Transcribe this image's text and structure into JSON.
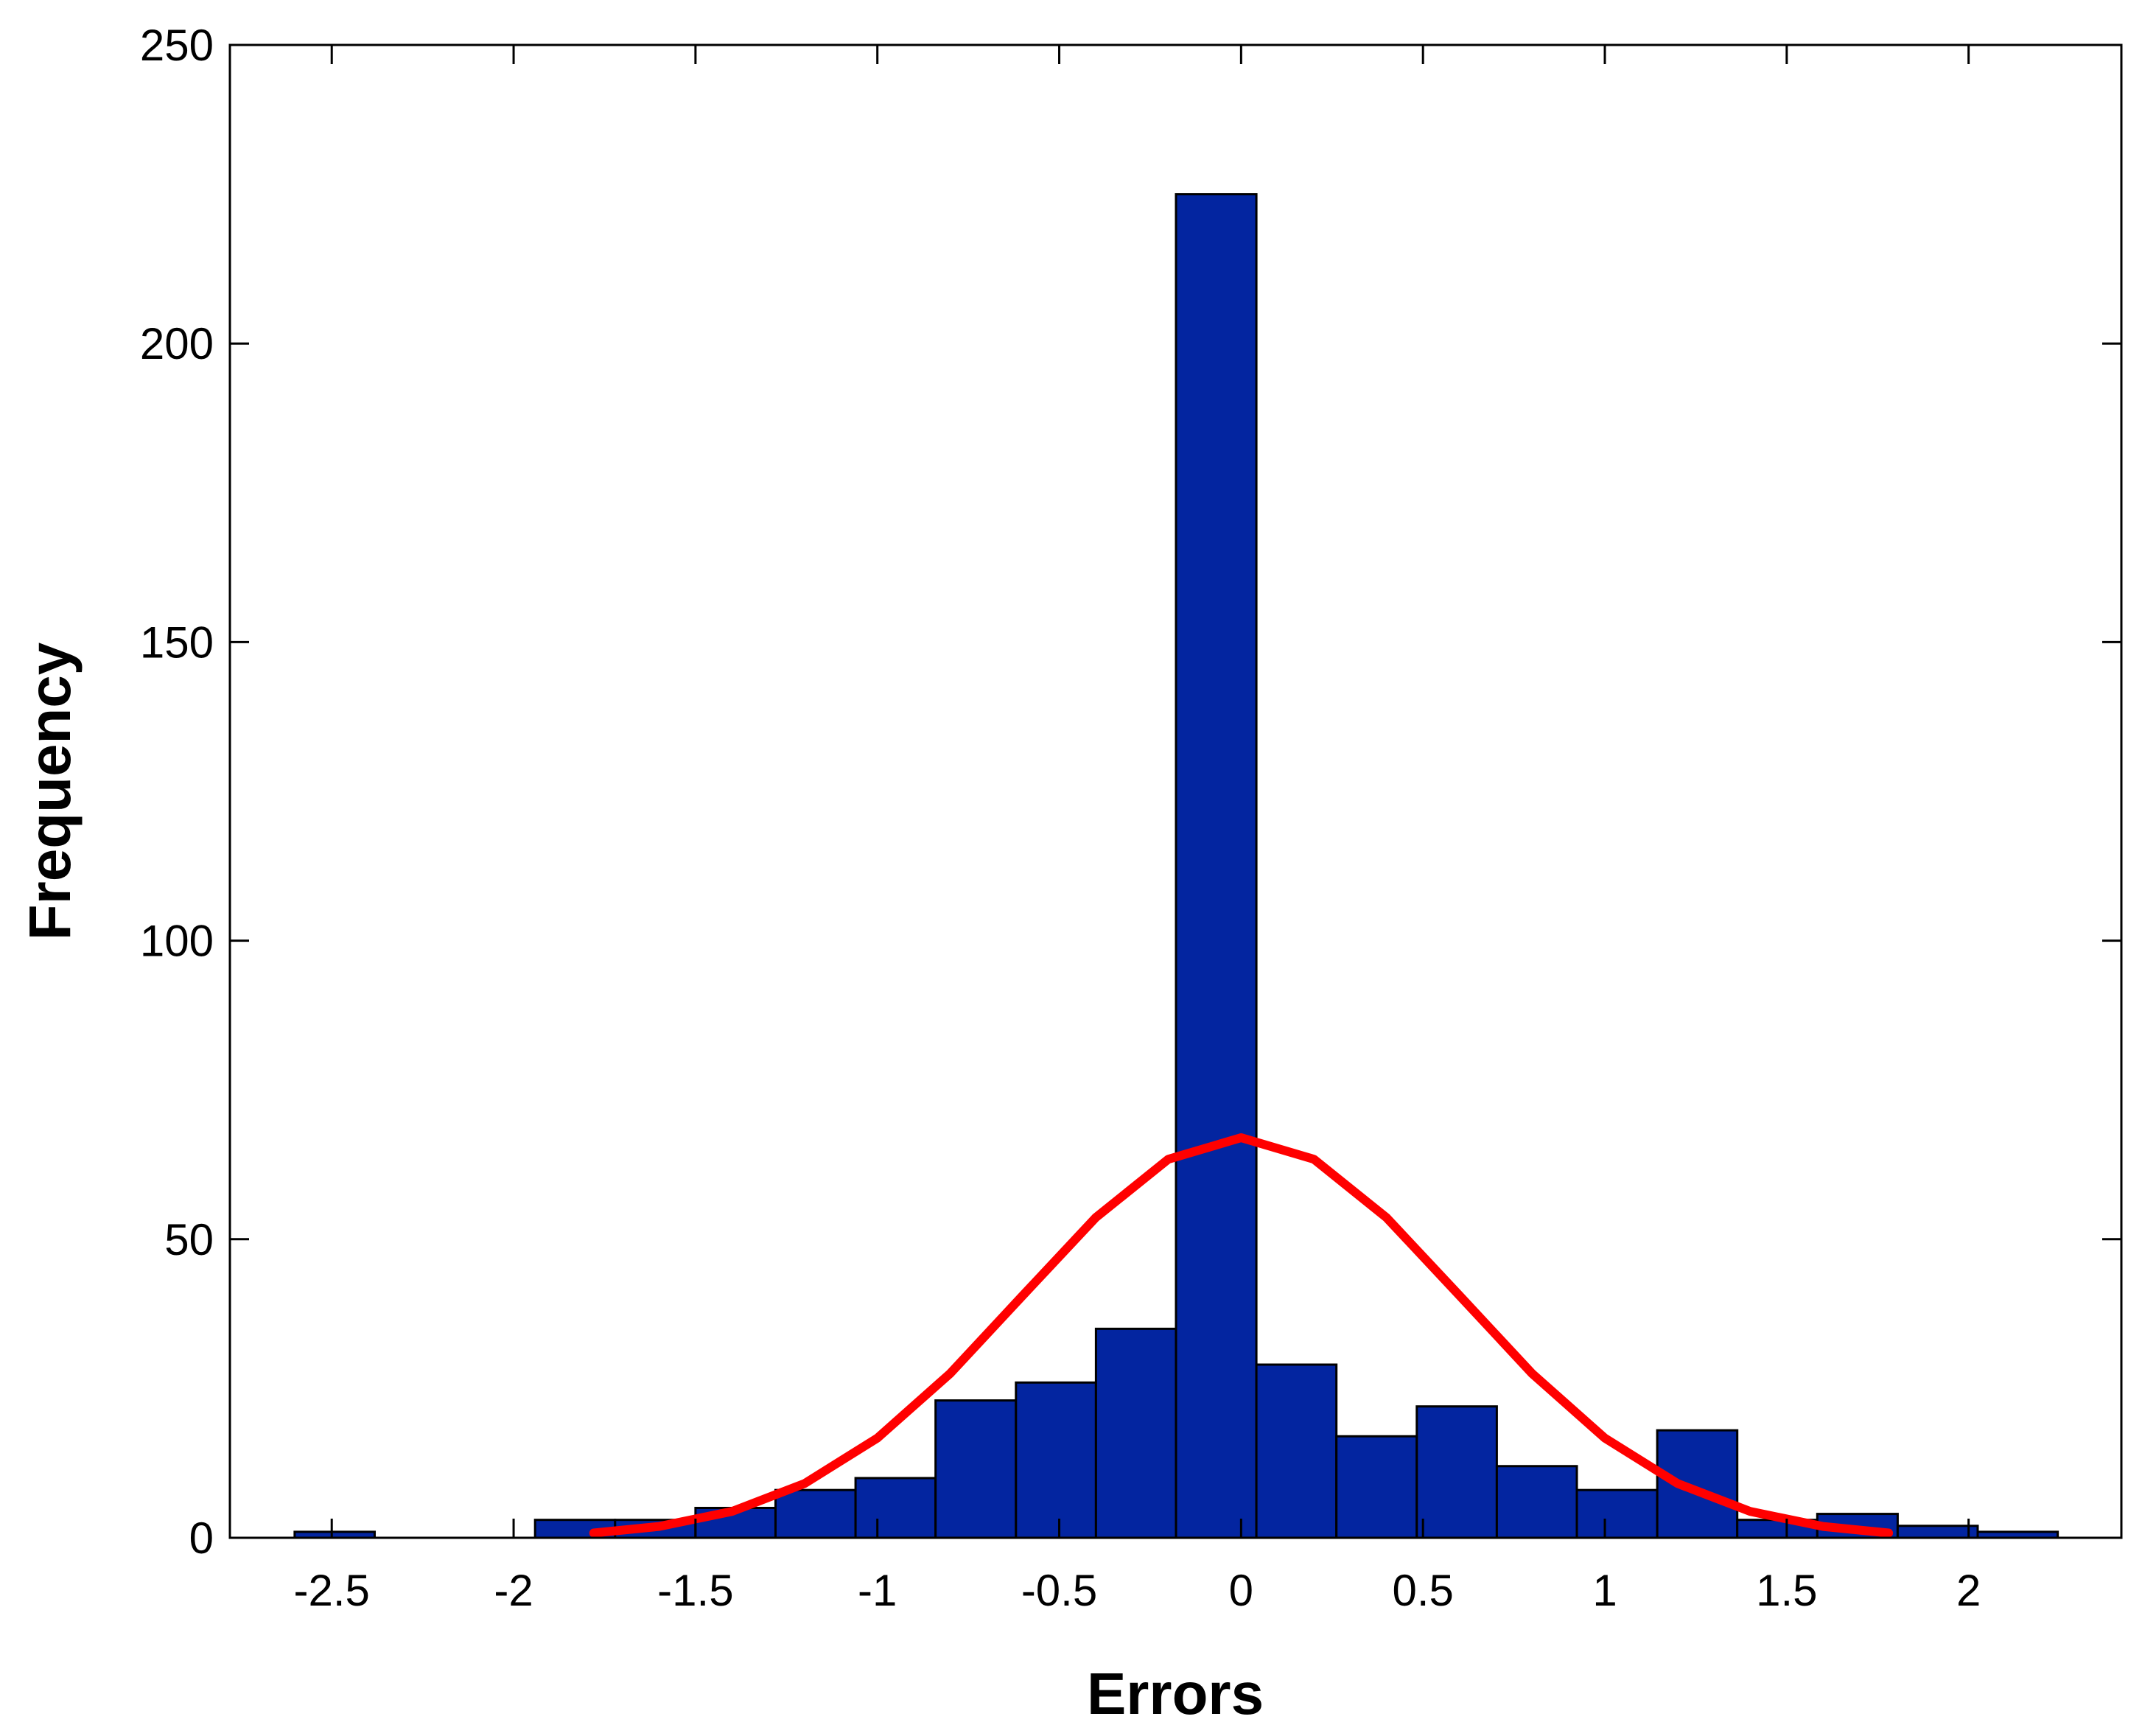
{
  "chart_data": {
    "type": "histogram",
    "xlabel": "Errors",
    "ylabel": "Frequency",
    "bins": [
      -2.602,
      -2.382,
      -2.161,
      -1.941,
      -1.721,
      -1.5,
      -1.28,
      -1.06,
      -0.84,
      -0.619,
      -0.399,
      -0.179,
      0.042,
      0.262,
      0.483,
      0.703,
      0.923,
      1.144,
      1.364,
      1.584,
      1.805,
      2.025,
      2.245
    ],
    "values": [
      1,
      0,
      0,
      3,
      3,
      5,
      8,
      10,
      23,
      26,
      35,
      225,
      29,
      17,
      22,
      12,
      8,
      18,
      3,
      4,
      2,
      1
    ],
    "color": "#0325a0",
    "edgecolor": "#000000",
    "curve": {
      "x": [
        -1.78,
        -1.6,
        -1.4,
        -1.2,
        -1.0,
        -0.8,
        -0.6,
        -0.4,
        -0.2,
        0,
        0.2,
        0.4,
        0.6,
        0.8,
        1.0,
        1.2,
        1.4,
        1.6,
        1.78
      ],
      "values": [
        0.8,
        1.9,
        4.4,
        9.1,
        16.7,
        27.5,
        40.6,
        53.6,
        63.4,
        67,
        63.4,
        53.6,
        40.6,
        27.5,
        16.7,
        9.1,
        4.4,
        1.9,
        0.8
      ],
      "color": "#ff0000"
    },
    "xlim": [
      -2.78,
      2.42
    ],
    "ylim": [
      0,
      250
    ],
    "xticks": [
      -2.5,
      -2,
      -1.5,
      -1,
      -0.5,
      0,
      0.5,
      1,
      1.5,
      2
    ],
    "yticks": [
      0,
      50,
      100,
      150,
      200,
      250
    ]
  }
}
